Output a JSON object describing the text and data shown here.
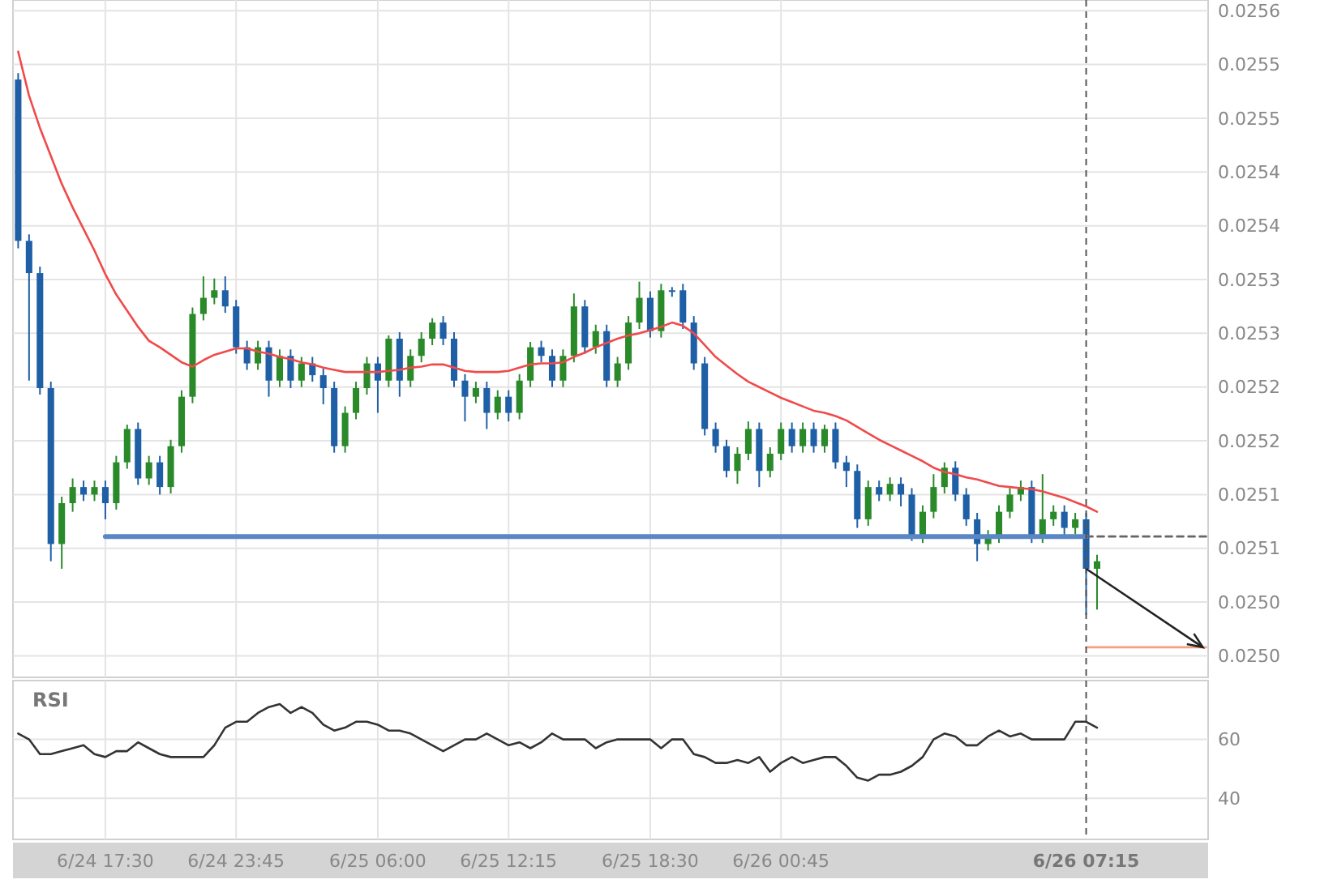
{
  "chart_data": [
    {
      "type": "candlestick",
      "ylim": [
        0.02498,
        0.02561
      ],
      "tick_labels": "y",
      "grid": true,
      "categories": [
        null,
        null,
        null,
        null,
        null,
        null,
        null,
        null,
        "6/24 17:30",
        null,
        null,
        null,
        null,
        null,
        null,
        null,
        null,
        null,
        null,
        null,
        "6/24 23:45",
        null,
        null,
        null,
        null,
        null,
        null,
        null,
        null,
        null,
        null,
        null,
        null,
        "6/25 06:00",
        null,
        null,
        null,
        null,
        null,
        null,
        null,
        null,
        null,
        null,
        null,
        "6/25 12:15",
        null,
        null,
        null,
        null,
        null,
        null,
        null,
        null,
        null,
        null,
        null,
        null,
        "6/25 18:30",
        null,
        null,
        null,
        null,
        null,
        null,
        null,
        null,
        null,
        null,
        null,
        "6/26 00:45",
        null,
        null,
        null,
        null,
        null,
        null,
        null,
        null,
        null,
        null,
        null,
        null,
        null,
        null,
        null,
        null,
        null,
        null,
        null,
        null,
        null,
        null,
        null,
        null,
        null,
        null,
        null,
        "6/26 07:15",
        null,
        null,
        null,
        null,
        null,
        null,
        null,
        null,
        null,
        null,
        null
      ],
      "yticks": [
        {
          "value": 0.0256,
          "label": "0.0256"
        },
        {
          "value": 0.02555,
          "label": "0.0255"
        },
        {
          "value": 0.0255,
          "label": "0.0255"
        },
        {
          "value": 0.02545,
          "label": "0.0254"
        },
        {
          "value": 0.0254,
          "label": "0.0254"
        },
        {
          "value": 0.02535,
          "label": "0.0253"
        },
        {
          "value": 0.0253,
          "label": "0.0253"
        },
        {
          "value": 0.02525,
          "label": "0.0252"
        },
        {
          "value": 0.0252,
          "label": "0.0252"
        },
        {
          "value": 0.02515,
          "label": "0.0251"
        },
        {
          "value": 0.0251,
          "label": "0.0251"
        },
        {
          "value": 0.02505,
          "label": "0.0250"
        },
        {
          "value": 0.025,
          "label": "0.0250"
        }
      ],
      "ref_lines": [
        {
          "axis": "x",
          "value": "6/26 07:15",
          "color": "#555555",
          "line_style": "dashed"
        }
      ],
      "series": [
        {
          "type": "candlestick",
          "ohlc": [
            [
              0.025536,
              0.025542,
              0.025379,
              0.025386
            ],
            [
              0.025386,
              0.025392,
              0.025256,
              0.025356
            ],
            [
              0.025356,
              0.025362,
              0.025243,
              0.025249
            ],
            [
              0.025249,
              0.025255,
              0.025088,
              0.025104
            ],
            [
              0.025104,
              0.025148,
              0.025081,
              0.025142
            ],
            [
              0.025142,
              0.025165,
              0.025134,
              0.025157
            ],
            [
              0.025157,
              0.025163,
              0.025144,
              0.02515
            ],
            [
              0.02515,
              0.025163,
              0.025144,
              0.025157
            ],
            [
              0.025157,
              0.025163,
              0.025127,
              0.025142
            ],
            [
              0.025142,
              0.025186,
              0.025136,
              0.02518
            ],
            [
              0.02518,
              0.025215,
              0.025174,
              0.025211
            ],
            [
              0.025211,
              0.025217,
              0.025159,
              0.025165
            ],
            [
              0.025165,
              0.025186,
              0.025159,
              0.02518
            ],
            [
              0.02518,
              0.025186,
              0.02515,
              0.025157
            ],
            [
              0.025157,
              0.025201,
              0.025151,
              0.025195
            ],
            [
              0.025195,
              0.025247,
              0.025189,
              0.025241
            ],
            [
              0.025241,
              0.025324,
              0.025235,
              0.025318
            ],
            [
              0.025318,
              0.025353,
              0.025312,
              0.025333
            ],
            [
              0.025333,
              0.025351,
              0.025327,
              0.02534
            ],
            [
              0.02534,
              0.025353,
              0.025319,
              0.025325
            ],
            [
              0.025325,
              0.025331,
              0.025281,
              0.025287
            ],
            [
              0.025287,
              0.025293,
              0.025266,
              0.025272
            ],
            [
              0.025272,
              0.025293,
              0.025266,
              0.025287
            ],
            [
              0.025287,
              0.025293,
              0.025241,
              0.025256
            ],
            [
              0.025256,
              0.025285,
              0.02525,
              0.025279
            ],
            [
              0.025279,
              0.025285,
              0.025249,
              0.025256
            ],
            [
              0.025256,
              0.025278,
              0.02525,
              0.025272
            ],
            [
              0.025272,
              0.025278,
              0.025255,
              0.025261
            ],
            [
              0.025261,
              0.025267,
              0.025234,
              0.025249
            ],
            [
              0.025249,
              0.025255,
              0.025189,
              0.025195
            ],
            [
              0.025195,
              0.025232,
              0.025189,
              0.025226
            ],
            [
              0.025226,
              0.025255,
              0.02522,
              0.025249
            ],
            [
              0.025249,
              0.025278,
              0.025243,
              0.025272
            ],
            [
              0.025272,
              0.025278,
              0.025226,
              0.025256
            ],
            [
              0.025256,
              0.025298,
              0.02525,
              0.025295
            ],
            [
              0.025295,
              0.025301,
              0.025241,
              0.025256
            ],
            [
              0.025256,
              0.025285,
              0.02525,
              0.025279
            ],
            [
              0.025279,
              0.025301,
              0.025273,
              0.025295
            ],
            [
              0.025295,
              0.025314,
              0.025289,
              0.02531
            ],
            [
              0.02531,
              0.025316,
              0.025289,
              0.025295
            ],
            [
              0.025295,
              0.025301,
              0.02525,
              0.025256
            ],
            [
              0.025256,
              0.025262,
              0.025218,
              0.025241
            ],
            [
              0.025241,
              0.025255,
              0.025235,
              0.025249
            ],
            [
              0.025249,
              0.025255,
              0.025211,
              0.025226
            ],
            [
              0.025226,
              0.025247,
              0.02522,
              0.025241
            ],
            [
              0.025241,
              0.025247,
              0.025218,
              0.025226
            ],
            [
              0.025226,
              0.025262,
              0.02522,
              0.025256
            ],
            [
              0.025256,
              0.025292,
              0.02525,
              0.025287
            ],
            [
              0.025287,
              0.025293,
              0.025273,
              0.025279
            ],
            [
              0.025279,
              0.025285,
              0.02525,
              0.025256
            ],
            [
              0.025256,
              0.025285,
              0.02525,
              0.025279
            ],
            [
              0.025279,
              0.025337,
              0.025273,
              0.025325
            ],
            [
              0.025325,
              0.025331,
              0.025281,
              0.025287
            ],
            [
              0.025287,
              0.025308,
              0.025281,
              0.025302
            ],
            [
              0.025302,
              0.025308,
              0.02525,
              0.025256
            ],
            [
              0.025256,
              0.025278,
              0.02525,
              0.025272
            ],
            [
              0.025272,
              0.025316,
              0.025266,
              0.02531
            ],
            [
              0.02531,
              0.025348,
              0.025304,
              0.025333
            ],
            [
              0.025333,
              0.025339,
              0.025296,
              0.025302
            ],
            [
              0.025302,
              0.025346,
              0.025296,
              0.02534
            ],
            [
              0.02534,
              0.025343,
              0.025334,
              0.02534
            ],
            [
              0.02534,
              0.025346,
              0.025304,
              0.02531
            ],
            [
              0.02531,
              0.025316,
              0.025266,
              0.025272
            ],
            [
              0.025272,
              0.025278,
              0.025205,
              0.025211
            ],
            [
              0.025211,
              0.025217,
              0.025189,
              0.025195
            ],
            [
              0.025195,
              0.025201,
              0.025166,
              0.025172
            ],
            [
              0.025172,
              0.025194,
              0.02516,
              0.025188
            ],
            [
              0.025188,
              0.025218,
              0.025182,
              0.025211
            ],
            [
              0.025211,
              0.025217,
              0.025157,
              0.025172
            ],
            [
              0.025172,
              0.025194,
              0.025166,
              0.025188
            ],
            [
              0.025188,
              0.025217,
              0.025182,
              0.025211
            ],
            [
              0.025211,
              0.025217,
              0.025189,
              0.025195
            ],
            [
              0.025195,
              0.025217,
              0.025189,
              0.025211
            ],
            [
              0.025211,
              0.025217,
              0.025189,
              0.025195
            ],
            [
              0.025195,
              0.025215,
              0.025189,
              0.025211
            ],
            [
              0.025211,
              0.025217,
              0.025174,
              0.02518
            ],
            [
              0.02518,
              0.025186,
              0.025157,
              0.025172
            ],
            [
              0.025172,
              0.025178,
              0.025119,
              0.025127
            ],
            [
              0.025127,
              0.025163,
              0.025121,
              0.025157
            ],
            [
              0.025157,
              0.025163,
              0.025144,
              0.02515
            ],
            [
              0.02515,
              0.025166,
              0.025144,
              0.02516
            ],
            [
              0.02516,
              0.025166,
              0.025139,
              0.02515
            ],
            [
              0.02515,
              0.025156,
              0.025107,
              0.025111
            ],
            [
              0.025111,
              0.02514,
              0.025105,
              0.025134
            ],
            [
              0.025134,
              0.025169,
              0.025128,
              0.025157
            ],
            [
              0.025157,
              0.02518,
              0.025151,
              0.025175
            ],
            [
              0.025175,
              0.025181,
              0.025144,
              0.02515
            ],
            [
              0.02515,
              0.025156,
              0.025121,
              0.025127
            ],
            [
              0.025127,
              0.025133,
              0.025088,
              0.025104
            ],
            [
              0.025104,
              0.025117,
              0.025098,
              0.025111
            ],
            [
              0.025111,
              0.02514,
              0.025105,
              0.025134
            ],
            [
              0.025134,
              0.025156,
              0.025128,
              0.02515
            ],
            [
              0.02515,
              0.025163,
              0.025144,
              0.025157
            ],
            [
              0.025157,
              0.025163,
              0.025105,
              0.025111
            ],
            [
              0.025111,
              0.025169,
              0.025105,
              0.025127
            ],
            [
              0.025127,
              0.02514,
              0.025121,
              0.025134
            ],
            [
              0.025134,
              0.02514,
              0.025111,
              0.025119
            ],
            [
              0.025119,
              0.025133,
              0.025113,
              0.025127
            ],
            [
              0.025127,
              0.025133,
              0.025038,
              0.025081
            ],
            [
              0.025081,
              0.025094,
              0.025043,
              0.025088
            ],
            null,
            null,
            null,
            null,
            null,
            null,
            null,
            null,
            null,
            null
          ],
          "colors": [
            "#1f5fa6",
            "#1f5fa6",
            "#1f5fa6",
            "#1f5fa6",
            "#2a8a2a",
            "#2a8a2a",
            "#1f5fa6",
            "#2a8a2a",
            "#1f5fa6",
            "#2a8a2a",
            "#2a8a2a",
            "#1f5fa6",
            "#2a8a2a",
            "#1f5fa6",
            "#2a8a2a",
            "#2a8a2a",
            "#2a8a2a",
            "#2a8a2a",
            "#2a8a2a",
            "#1f5fa6",
            "#1f5fa6",
            "#1f5fa6",
            "#2a8a2a",
            "#1f5fa6",
            "#2a8a2a",
            "#1f5fa6",
            "#2a8a2a",
            "#1f5fa6",
            "#1f5fa6",
            "#1f5fa6",
            "#2a8a2a",
            "#2a8a2a",
            "#2a8a2a",
            "#1f5fa6",
            "#2a8a2a",
            "#1f5fa6",
            "#2a8a2a",
            "#2a8a2a",
            "#2a8a2a",
            "#1f5fa6",
            "#1f5fa6",
            "#1f5fa6",
            "#2a8a2a",
            "#1f5fa6",
            "#2a8a2a",
            "#1f5fa6",
            "#2a8a2a",
            "#2a8a2a",
            "#1f5fa6",
            "#1f5fa6",
            "#2a8a2a",
            "#2a8a2a",
            "#1f5fa6",
            "#2a8a2a",
            "#1f5fa6",
            "#2a8a2a",
            "#2a8a2a",
            "#2a8a2a",
            "#1f5fa6",
            "#2a8a2a",
            "#1f5fa6",
            "#1f5fa6",
            "#1f5fa6",
            "#1f5fa6",
            "#1f5fa6",
            "#1f5fa6",
            "#2a8a2a",
            "#2a8a2a",
            "#1f5fa6",
            "#2a8a2a",
            "#2a8a2a",
            "#1f5fa6",
            "#2a8a2a",
            "#1f5fa6",
            "#2a8a2a",
            "#1f5fa6",
            "#1f5fa6",
            "#1f5fa6",
            "#2a8a2a",
            "#1f5fa6",
            "#2a8a2a",
            "#1f5fa6",
            "#1f5fa6",
            "#2a8a2a",
            "#2a8a2a",
            "#2a8a2a",
            "#1f5fa6",
            "#1f5fa6",
            "#1f5fa6",
            "#2a8a2a",
            "#2a8a2a",
            "#2a8a2a",
            "#2a8a2a",
            "#1f5fa6",
            "#2a8a2a",
            "#2a8a2a",
            "#1f5fa6",
            "#2a8a2a",
            "#1f5fa6",
            "#2a8a2a",
            null,
            null,
            null,
            null,
            null,
            null,
            null,
            null,
            null,
            null
          ]
        },
        {
          "type": "line",
          "color": "#f04a4a",
          "values": [
            0.025562,
            0.025521,
            0.025491,
            0.025465,
            0.025439,
            0.025417,
            0.025397,
            0.025377,
            0.025355,
            0.025336,
            0.025321,
            0.025306,
            0.025293,
            0.025287,
            0.02528,
            0.025273,
            0.025269,
            0.025275,
            0.02528,
            0.025283,
            0.025286,
            0.025286,
            0.025283,
            0.025281,
            0.025278,
            0.025276,
            0.025273,
            0.025271,
            0.025268,
            0.025266,
            0.025264,
            0.025264,
            0.025264,
            0.025264,
            0.025265,
            0.025266,
            0.025268,
            0.025269,
            0.025271,
            0.025271,
            0.025268,
            0.025265,
            0.025264,
            0.025264,
            0.025264,
            0.025265,
            0.025268,
            0.025271,
            0.025272,
            0.025272,
            0.025273,
            0.025278,
            0.025282,
            0.025287,
            0.025291,
            0.025295,
            0.025298,
            0.0253,
            0.025303,
            0.025306,
            0.02531,
            0.025307,
            0.0253,
            0.025289,
            0.025278,
            0.02527,
            0.025262,
            0.025255,
            0.02525,
            0.025245,
            0.02524,
            0.025236,
            0.025232,
            0.025228,
            0.025226,
            0.025223,
            0.025219,
            0.025213,
            0.025207,
            0.025201,
            0.025196,
            0.025191,
            0.025186,
            0.025181,
            0.025175,
            0.025171,
            0.025169,
            0.025166,
            0.025164,
            0.025161,
            0.025158,
            0.025157,
            0.025156,
            0.025155,
            0.025153,
            0.02515,
            0.025147,
            0.025143,
            0.025139,
            0.025134,
            null,
            null,
            null,
            null,
            null,
            null,
            null,
            null,
            null,
            null
          ]
        },
        {
          "type": "line",
          "color": "#5b86c5",
          "values": [
            null,
            null,
            null,
            null,
            null,
            null,
            null,
            null,
            0.025111,
            0.025111,
            0.025111,
            0.025111,
            0.025111,
            0.025111,
            0.025111,
            0.025111,
            0.025111,
            0.025111,
            0.025111,
            0.025111,
            0.025111,
            0.025111,
            0.025111,
            0.025111,
            0.025111,
            0.025111,
            0.025111,
            0.025111,
            0.025111,
            0.025111,
            0.025111,
            0.025111,
            0.025111,
            0.025111,
            0.025111,
            0.025111,
            0.025111,
            0.025111,
            0.025111,
            0.025111,
            0.025111,
            0.025111,
            0.025111,
            0.025111,
            0.025111,
            0.025111,
            0.025111,
            0.025111,
            0.025111,
            0.025111,
            0.025111,
            0.025111,
            0.025111,
            0.025111,
            0.025111,
            0.025111,
            0.025111,
            0.025111,
            0.025111,
            0.025111,
            0.025111,
            0.025111,
            0.025111,
            0.025111,
            0.025111,
            0.025111,
            0.025111,
            0.025111,
            0.025111,
            0.025111,
            0.025111,
            0.025111,
            0.025111,
            0.025111,
            0.025111,
            0.025111,
            0.025111,
            0.025111,
            0.025111,
            0.025111,
            0.025111,
            0.025111,
            0.025111,
            0.025111,
            0.025111,
            0.025111,
            0.025111,
            0.025111,
            0.025111,
            0.025111,
            0.025111,
            0.025111,
            0.025111,
            0.025111,
            0.025111,
            0.025111,
            0.025111,
            0.025111,
            0.025111,
            null,
            null,
            null,
            null,
            null,
            null,
            null,
            null,
            null,
            null,
            null
          ]
        },
        {
          "type": "line",
          "color": "#666666",
          "line_style": "dashed",
          "values": [
            null,
            null,
            null,
            null,
            null,
            null,
            null,
            null,
            null,
            null,
            null,
            null,
            null,
            null,
            null,
            null,
            null,
            null,
            null,
            null,
            null,
            null,
            null,
            null,
            null,
            null,
            null,
            null,
            null,
            null,
            null,
            null,
            null,
            null,
            null,
            null,
            null,
            null,
            null,
            null,
            null,
            null,
            null,
            null,
            null,
            null,
            null,
            null,
            null,
            null,
            null,
            null,
            null,
            null,
            null,
            null,
            null,
            null,
            null,
            null,
            null,
            null,
            null,
            null,
            null,
            null,
            null,
            null,
            null,
            null,
            null,
            null,
            null,
            null,
            null,
            null,
            null,
            null,
            null,
            null,
            null,
            null,
            null,
            null,
            null,
            null,
            null,
            null,
            null,
            null,
            null,
            null,
            null,
            null,
            null,
            null,
            null,
            null,
            0.025111,
            0.025111,
            0.025111,
            0.025111,
            0.025111,
            0.025111,
            0.025111,
            0.025111,
            0.025111,
            0.025111,
            0.025111,
            0.025111
          ]
        },
        {
          "type": "line",
          "color": "#f4a080",
          "values": [
            null,
            null,
            null,
            null,
            null,
            null,
            null,
            null,
            null,
            null,
            null,
            null,
            null,
            null,
            null,
            null,
            null,
            null,
            null,
            null,
            null,
            null,
            null,
            null,
            null,
            null,
            null,
            null,
            null,
            null,
            null,
            null,
            null,
            null,
            null,
            null,
            null,
            null,
            null,
            null,
            null,
            null,
            null,
            null,
            null,
            null,
            null,
            null,
            null,
            null,
            null,
            null,
            null,
            null,
            null,
            null,
            null,
            null,
            null,
            null,
            null,
            null,
            null,
            null,
            null,
            null,
            null,
            null,
            null,
            null,
            null,
            null,
            null,
            null,
            null,
            null,
            null,
            null,
            null,
            null,
            null,
            null,
            null,
            null,
            null,
            null,
            null,
            null,
            null,
            null,
            null,
            null,
            null,
            null,
            null,
            null,
            null,
            null,
            0.025008,
            0.025008,
            0.025008,
            0.025008,
            0.025008,
            0.025008,
            0.025008,
            0.025008,
            0.025008,
            0.025008,
            0.025008,
            0.025008
          ]
        }
      ]
    },
    {
      "type": "line",
      "title": "RSI",
      "ylim": [
        26,
        80
      ],
      "yticks": [
        40,
        60
      ],
      "grid": true,
      "categories": [
        null,
        null,
        null,
        null,
        null,
        null,
        null,
        null,
        "6/24 17:30",
        null,
        null,
        null,
        null,
        null,
        null,
        null,
        null,
        null,
        null,
        null,
        "6/24 23:45",
        null,
        null,
        null,
        null,
        null,
        null,
        null,
        null,
        null,
        null,
        null,
        null,
        "6/25 06:00",
        null,
        null,
        null,
        null,
        null,
        null,
        null,
        null,
        null,
        null,
        null,
        "6/25 12:15",
        null,
        null,
        null,
        null,
        null,
        null,
        null,
        null,
        null,
        null,
        null,
        null,
        "6/25 18:30",
        null,
        null,
        null,
        null,
        null,
        null,
        null,
        null,
        null,
        null,
        null,
        "6/26 00:45",
        null,
        null,
        null,
        null,
        null,
        null,
        null,
        null,
        null,
        null,
        null,
        null,
        null,
        null,
        null,
        null,
        null,
        null,
        null,
        null,
        null,
        null,
        null,
        null,
        null,
        null,
        null,
        "6/26 07:15",
        null,
        null,
        null,
        null,
        null,
        null,
        null,
        null,
        null,
        null,
        null
      ],
      "ref_lines": [
        {
          "axis": "x",
          "value": "6/26 07:15",
          "color": "#555555",
          "line_style": "dashed"
        }
      ],
      "series": [
        {
          "color": "#333333",
          "values": [
            62,
            60,
            55,
            55,
            56,
            57,
            58,
            55,
            54,
            56,
            56,
            59,
            57,
            55,
            54,
            54,
            54,
            54,
            58,
            64,
            66,
            66,
            69,
            71,
            72,
            69,
            71,
            69,
            65,
            63,
            64,
            66,
            66,
            65,
            63,
            63,
            62,
            60,
            58,
            56,
            58,
            60,
            60,
            62,
            60,
            58,
            59,
            57,
            59,
            62,
            60,
            60,
            60,
            57,
            59,
            60,
            60,
            60,
            60,
            57,
            60,
            60,
            55,
            54,
            52,
            52,
            53,
            52,
            54,
            49,
            52,
            54,
            52,
            53,
            54,
            54,
            51,
            47,
            46,
            48,
            48,
            49,
            51,
            54,
            60,
            62,
            61,
            58,
            58,
            61,
            63,
            61,
            62,
            60,
            60,
            60,
            60,
            66,
            66,
            64,
            null,
            null,
            null,
            null,
            null,
            null,
            null,
            null,
            null,
            null
          ]
        }
      ]
    }
  ]
}
